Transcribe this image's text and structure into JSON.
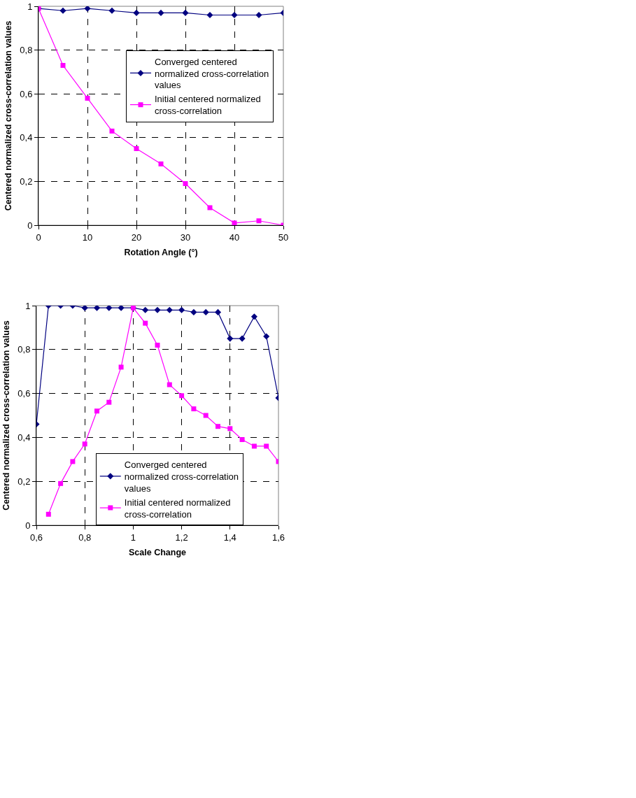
{
  "chart_data": [
    {
      "type": "line",
      "xlabel": "Rotation Angle (°)",
      "ylabel": "Centered normalized cross-correlation values",
      "x": [
        0,
        5,
        10,
        15,
        20,
        25,
        30,
        35,
        40,
        45,
        50
      ],
      "xlim": [
        0,
        50
      ],
      "xticks": [
        0,
        10,
        20,
        30,
        40,
        50
      ],
      "ylim": [
        0,
        1
      ],
      "yticks": [
        0,
        {
          "value": 0.2,
          "label": "0,2"
        },
        {
          "value": 0.4,
          "label": "0,4"
        },
        {
          "value": 0.6,
          "label": "0,6"
        },
        {
          "value": 0.8,
          "label": "0,8"
        },
        1
      ],
      "grid": true,
      "legend": "top right",
      "series": [
        {
          "name": "Converged centered normalized cross-correlation values",
          "color": "#000080",
          "marker": "diamond",
          "values": [
            0.99,
            0.98,
            0.99,
            0.98,
            0.97,
            0.97,
            0.97,
            0.96,
            0.96,
            0.96,
            0.97
          ]
        },
        {
          "name": "Initial centered normalized cross-correlation",
          "color": "#ff00ff",
          "marker": "square",
          "values": [
            0.99,
            0.73,
            0.58,
            0.43,
            0.35,
            0.28,
            0.19,
            0.08,
            0.01,
            0.02,
            0.0
          ]
        }
      ]
    },
    {
      "type": "line",
      "xlabel": "Scale Change",
      "ylabel": "Centered normalized cross-correlation values",
      "x": [
        0.6,
        0.65,
        0.7,
        0.75,
        0.8,
        0.85,
        0.9,
        0.95,
        1.0,
        1.05,
        1.1,
        1.15,
        1.2,
        1.25,
        1.3,
        1.35,
        1.4,
        1.45,
        1.5,
        1.55,
        1.6
      ],
      "xlim": [
        0.6,
        1.6
      ],
      "xticks": [
        {
          "value": 0.6,
          "label": "0,6"
        },
        {
          "value": 0.8,
          "label": "0,8"
        },
        1,
        {
          "value": 1.2,
          "label": "1,2"
        },
        {
          "value": 1.4,
          "label": "1,4"
        },
        {
          "value": 1.6,
          "label": "1,6"
        }
      ],
      "ylim": [
        0,
        1
      ],
      "yticks": [
        0,
        {
          "value": 0.2,
          "label": "0,2"
        },
        {
          "value": 0.4,
          "label": "0,4"
        },
        {
          "value": 0.6,
          "label": "0,6"
        },
        {
          "value": 0.8,
          "label": "0,8"
        },
        1
      ],
      "grid": true,
      "legend": "bottom",
      "series": [
        {
          "name": "Converged centered normalized cross-correlation values",
          "color": "#000080",
          "marker": "diamond",
          "values": [
            0.46,
            1.0,
            1.0,
            1.0,
            0.99,
            0.99,
            0.99,
            0.99,
            0.99,
            0.98,
            0.98,
            0.98,
            0.98,
            0.97,
            0.97,
            0.97,
            0.85,
            0.85,
            0.95,
            0.86,
            0.58
          ]
        },
        {
          "name": "Initial centered normalized cross-correlation",
          "color": "#ff00ff",
          "marker": "square",
          "values": [
            null,
            0.05,
            0.19,
            0.29,
            0.37,
            0.52,
            0.56,
            0.72,
            0.99,
            0.92,
            0.82,
            0.64,
            0.59,
            0.53,
            0.5,
            0.45,
            0.44,
            0.39,
            0.36,
            0.36,
            0.29
          ]
        }
      ]
    }
  ]
}
